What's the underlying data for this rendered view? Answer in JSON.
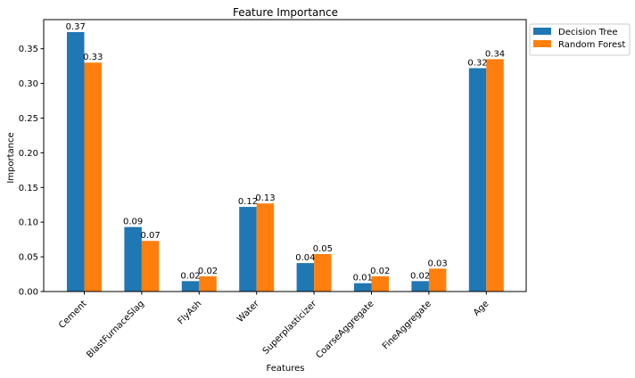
{
  "chart_data": {
    "type": "bar",
    "title": "Feature Importance",
    "xlabel": "Features",
    "ylabel": "Importance",
    "categories": [
      "Cement",
      "BlastFurnaceSlag",
      "FlyAsh",
      "Water",
      "Superplasticizer",
      "CoarseAggregate",
      "FineAggregate",
      "Age"
    ],
    "series": [
      {
        "name": "Decision Tree",
        "color": "#1f77b4",
        "values": [
          0.374,
          0.093,
          0.015,
          0.122,
          0.041,
          0.012,
          0.015,
          0.322
        ],
        "labels": [
          "0.37",
          "0.09",
          "0.02",
          "0.12",
          "0.04",
          "0.01",
          "0.02",
          "0.32"
        ]
      },
      {
        "name": "Random Forest",
        "color": "#ff7f0e",
        "values": [
          0.33,
          0.073,
          0.022,
          0.127,
          0.054,
          0.022,
          0.033,
          0.335
        ],
        "labels": [
          "0.33",
          "0.07",
          "0.02",
          "0.13",
          "0.05",
          "0.02",
          "0.03",
          "0.34"
        ]
      }
    ],
    "ylim": [
      0,
      0.392
    ],
    "yticks": [
      0.0,
      0.05,
      0.1,
      0.15,
      0.2,
      0.25,
      0.3,
      0.35
    ],
    "ytick_labels": [
      "0.00",
      "0.05",
      "0.10",
      "0.15",
      "0.20",
      "0.25",
      "0.30",
      "0.35"
    ],
    "xtick_rotation": 45,
    "grid": false,
    "legend_position": "outside-top-right"
  }
}
